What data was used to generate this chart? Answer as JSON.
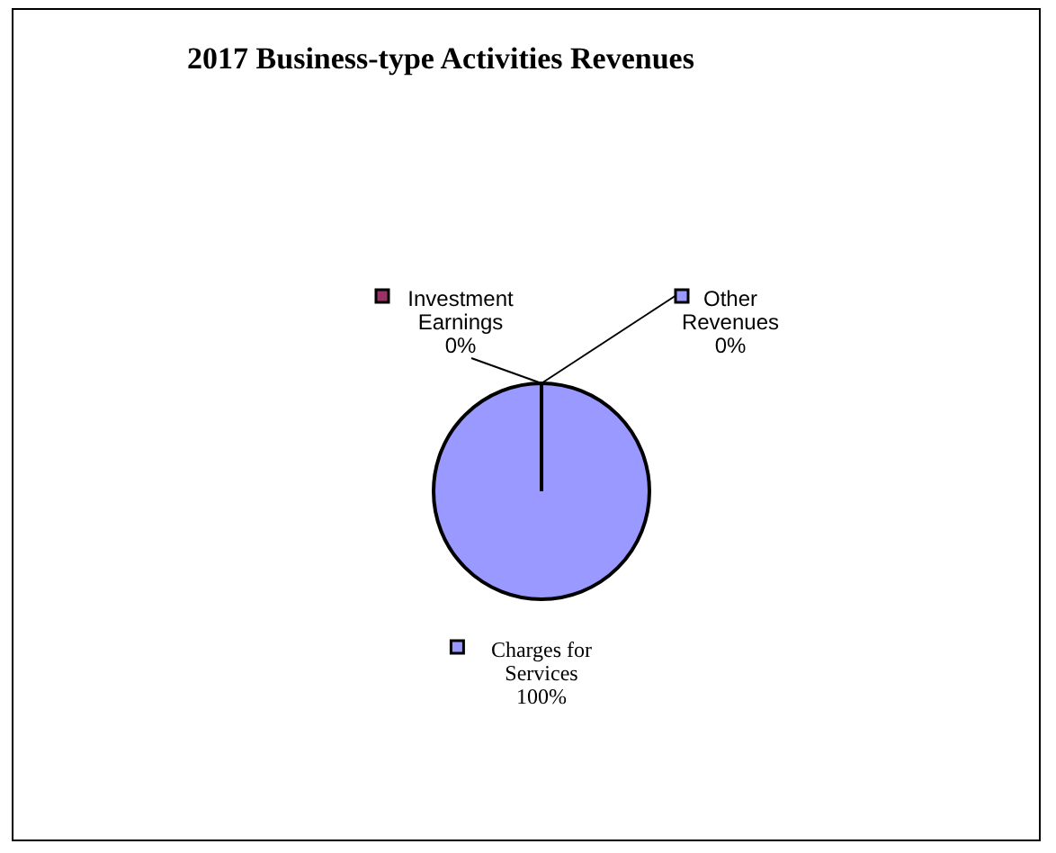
{
  "chart_data": {
    "type": "pie",
    "title": "2017 Business-type Activities Revenues",
    "categories": [
      "Charges for Services",
      "Investment Earnings",
      "Other Revenues"
    ],
    "values": [
      100,
      0,
      0
    ],
    "colors": [
      "#9999ff",
      "#993366",
      "#9999ff"
    ],
    "value_labels": [
      "100%",
      "0%",
      "0%"
    ]
  }
}
